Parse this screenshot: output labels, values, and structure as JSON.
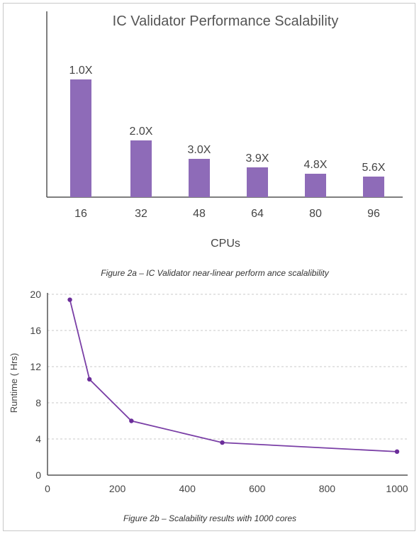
{
  "chart_data": [
    {
      "type": "bar",
      "title": "IC Validator Performance Scalability",
      "xlabel": "CPUs",
      "ylabel": "",
      "categories": [
        "16",
        "32",
        "48",
        "64",
        "80",
        "96"
      ],
      "values": [
        1.0,
        2.0,
        3.0,
        3.9,
        4.8,
        5.6
      ],
      "data_labels": [
        "1.0X",
        "2.0X",
        "3.0X",
        "3.9X",
        "4.8X",
        "5.6X"
      ],
      "caption": "Figure 2a – IC Validator near-linear perform ance scalalibility",
      "bar_color": "#8e6bb8",
      "legend": "none",
      "grid": false
    },
    {
      "type": "line",
      "title": "",
      "xlabel": "",
      "ylabel": "Runtime (  Hrs)",
      "x": [
        64,
        120,
        240,
        500,
        1000
      ],
      "y": [
        19.4,
        10.6,
        6.0,
        3.6,
        2.6
      ],
      "xlim": [
        0,
        1000
      ],
      "ylim": [
        0,
        20
      ],
      "xticks": [
        "0",
        "200",
        "400",
        "600",
        "800",
        "1000"
      ],
      "yticks": [
        "0",
        "4",
        "8",
        "12",
        "16",
        "20"
      ],
      "caption": "Figure 2b – Scalability results with 1000 cores",
      "line_color": "#7a3fa6",
      "grid": true,
      "legend": "none"
    }
  ]
}
